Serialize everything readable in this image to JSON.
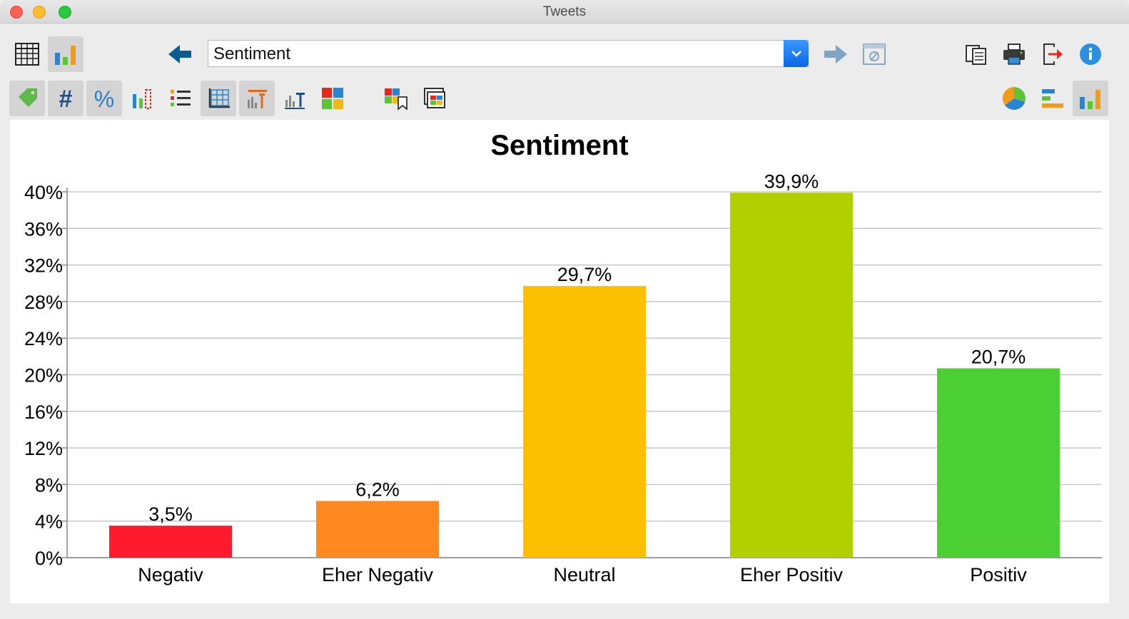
{
  "window": {
    "title": "Tweets"
  },
  "toolbar": {
    "selector_value": "Sentiment"
  },
  "icons": {
    "row1": [
      "table-view-icon",
      "chart-view-icon",
      "back-arrow-icon",
      "forward-arrow-icon",
      "no-filter-icon",
      "copy-icon",
      "print-icon",
      "export-icon",
      "info-icon"
    ],
    "row2": [
      "tag-icon",
      "absolute-count-icon",
      "percent-icon",
      "missing-values-icon",
      "list-icon",
      "grid-lines-icon",
      "title-icon",
      "axis-title-icon",
      "color-scheme-icon",
      "bookmark-icon",
      "window-icon",
      "pie-chart-icon",
      "horizontal-bar-icon",
      "vertical-bar-icon"
    ]
  },
  "colors": {
    "accent": "#0a66e6",
    "arrow_blue": "#0b5c8e"
  },
  "chart_data": {
    "type": "bar",
    "title": "Sentiment",
    "categories": [
      "Negativ",
      "Eher Negativ",
      "Neutral",
      "Eher Positiv",
      "Positiv"
    ],
    "values": [
      3.5,
      6.2,
      29.7,
      39.9,
      20.7
    ],
    "value_labels": [
      "3,5%",
      "6,2%",
      "29,7%",
      "39,9%",
      "20,7%"
    ],
    "colors": [
      "#ff1a2e",
      "#ff8820",
      "#fbc100",
      "#b2cf00",
      "#4ccf33"
    ],
    "ylim": [
      0,
      40
    ],
    "yticks": [
      "0%",
      "4%",
      "8%",
      "12%",
      "16%",
      "20%",
      "24%",
      "28%",
      "32%",
      "36%",
      "40%"
    ],
    "grid": true,
    "xlabel": "",
    "ylabel": ""
  }
}
